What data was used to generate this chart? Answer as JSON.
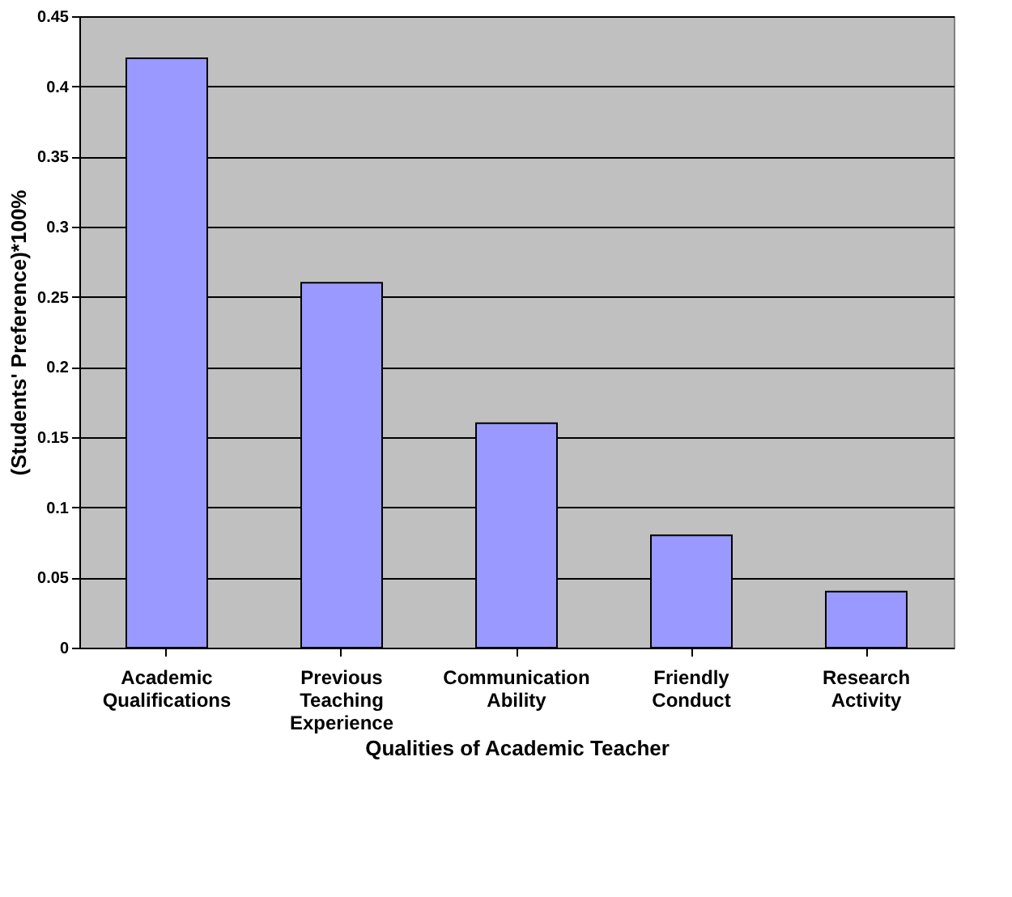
{
  "chart_data": {
    "type": "bar",
    "xlabel": "Qualities of Academic Teacher",
    "ylabel": "(Students' Preference)*100%",
    "categories": [
      "Academic Qualifications",
      "Previous Teaching Experience",
      "Communication Ability",
      "Friendly Conduct",
      "Research Activity"
    ],
    "values": [
      0.42,
      0.26,
      0.16,
      0.08,
      0.04
    ],
    "color": "#9999ff",
    "ylim": [
      0,
      0.45
    ],
    "yticks": [
      0,
      0.05,
      0.1,
      0.15,
      0.2,
      0.25,
      0.3,
      0.35,
      0.4,
      0.45
    ],
    "grid": "y"
  }
}
